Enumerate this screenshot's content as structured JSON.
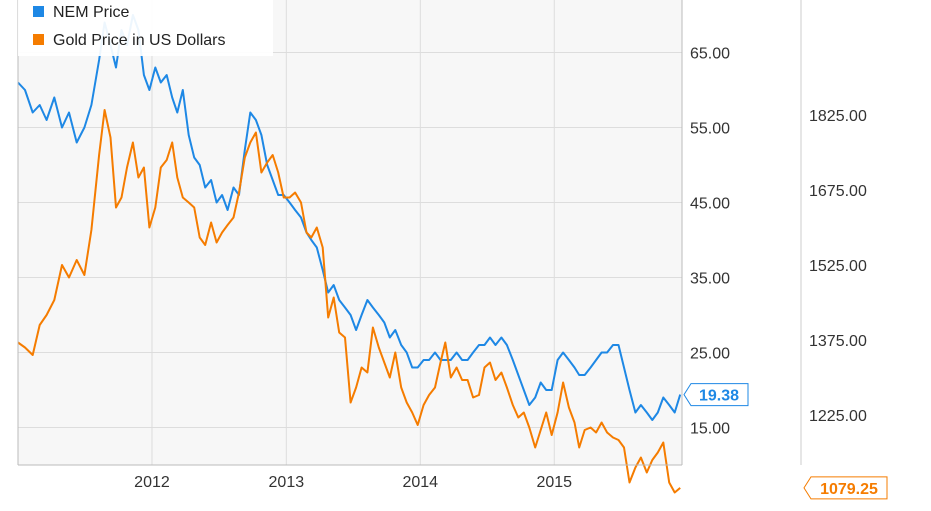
{
  "chart_data": {
    "type": "line",
    "title": "",
    "grid": true,
    "legend_position": "top-left",
    "x_ticks": [
      {
        "label": "2012",
        "date": "2012-01-01"
      },
      {
        "label": "2013",
        "date": "2013-01-01"
      },
      {
        "label": "2014",
        "date": "2014-01-01"
      },
      {
        "label": "2015",
        "date": "2015-01-01"
      }
    ],
    "x_range": [
      "2011-01-01",
      "2015-12-15"
    ],
    "axes": {
      "left": {
        "range": [
          10,
          72
        ],
        "ticks": [
          "15.00",
          "25.00",
          "35.00",
          "45.00",
          "55.00",
          "65.00"
        ]
      },
      "right": {
        "range": [
          1125,
          2055
        ],
        "ticks": [
          "1225.00",
          "1375.00",
          "1525.00",
          "1675.00",
          "1825.00"
        ]
      }
    },
    "series": [
      {
        "name": "NEM Price",
        "axis": "left",
        "color": "#1e88e5",
        "last_value_label": "19.38",
        "points": [
          [
            "2011-01-01",
            61
          ],
          [
            "2011-01-20",
            60
          ],
          [
            "2011-02-10",
            57
          ],
          [
            "2011-03-01",
            58
          ],
          [
            "2011-03-20",
            56
          ],
          [
            "2011-04-10",
            59
          ],
          [
            "2011-05-01",
            55
          ],
          [
            "2011-05-20",
            57
          ],
          [
            "2011-06-10",
            53
          ],
          [
            "2011-07-01",
            55
          ],
          [
            "2011-07-20",
            58
          ],
          [
            "2011-08-10",
            64
          ],
          [
            "2011-08-25",
            69
          ],
          [
            "2011-09-10",
            66
          ],
          [
            "2011-09-25",
            63
          ],
          [
            "2011-10-10",
            68
          ],
          [
            "2011-10-25",
            66
          ],
          [
            "2011-11-10",
            70
          ],
          [
            "2011-11-25",
            68
          ],
          [
            "2011-12-10",
            62
          ],
          [
            "2011-12-25",
            60
          ],
          [
            "2012-01-10",
            63
          ],
          [
            "2012-01-25",
            61
          ],
          [
            "2012-02-10",
            62
          ],
          [
            "2012-02-25",
            59
          ],
          [
            "2012-03-10",
            57
          ],
          [
            "2012-03-25",
            60
          ],
          [
            "2012-04-10",
            54
          ],
          [
            "2012-04-25",
            51
          ],
          [
            "2012-05-10",
            50
          ],
          [
            "2012-05-25",
            47
          ],
          [
            "2012-06-10",
            48
          ],
          [
            "2012-06-25",
            45
          ],
          [
            "2012-07-10",
            46
          ],
          [
            "2012-07-25",
            44
          ],
          [
            "2012-08-10",
            47
          ],
          [
            "2012-08-25",
            46
          ],
          [
            "2012-09-10",
            52
          ],
          [
            "2012-09-25",
            57
          ],
          [
            "2012-10-10",
            56
          ],
          [
            "2012-10-25",
            54
          ],
          [
            "2012-11-10",
            50
          ],
          [
            "2012-11-25",
            48
          ],
          [
            "2012-12-10",
            46
          ],
          [
            "2012-12-25",
            46
          ],
          [
            "2013-01-10",
            45
          ],
          [
            "2013-01-25",
            44
          ],
          [
            "2013-02-10",
            43
          ],
          [
            "2013-02-25",
            41
          ],
          [
            "2013-03-10",
            40
          ],
          [
            "2013-03-25",
            39
          ],
          [
            "2013-04-10",
            36
          ],
          [
            "2013-04-25",
            33
          ],
          [
            "2013-05-10",
            34
          ],
          [
            "2013-05-25",
            32
          ],
          [
            "2013-06-10",
            31
          ],
          [
            "2013-06-25",
            30
          ],
          [
            "2013-07-10",
            28
          ],
          [
            "2013-07-25",
            30
          ],
          [
            "2013-08-10",
            32
          ],
          [
            "2013-08-25",
            31
          ],
          [
            "2013-09-10",
            30
          ],
          [
            "2013-09-25",
            29
          ],
          [
            "2013-10-10",
            27
          ],
          [
            "2013-10-25",
            28
          ],
          [
            "2013-11-10",
            26
          ],
          [
            "2013-11-25",
            25
          ],
          [
            "2013-12-10",
            23
          ],
          [
            "2013-12-25",
            23
          ],
          [
            "2014-01-10",
            24
          ],
          [
            "2014-01-25",
            24
          ],
          [
            "2014-02-10",
            25
          ],
          [
            "2014-02-25",
            24
          ],
          [
            "2014-03-10",
            24
          ],
          [
            "2014-03-25",
            24
          ],
          [
            "2014-04-10",
            25
          ],
          [
            "2014-04-25",
            24
          ],
          [
            "2014-05-10",
            24
          ],
          [
            "2014-05-25",
            25
          ],
          [
            "2014-06-10",
            26
          ],
          [
            "2014-06-25",
            26
          ],
          [
            "2014-07-10",
            27
          ],
          [
            "2014-07-25",
            26
          ],
          [
            "2014-08-10",
            27
          ],
          [
            "2014-08-25",
            26
          ],
          [
            "2014-09-10",
            24
          ],
          [
            "2014-09-25",
            22
          ],
          [
            "2014-10-10",
            20
          ],
          [
            "2014-10-25",
            18
          ],
          [
            "2014-11-10",
            19
          ],
          [
            "2014-11-25",
            21
          ],
          [
            "2014-12-10",
            20
          ],
          [
            "2014-12-25",
            20
          ],
          [
            "2015-01-10",
            24
          ],
          [
            "2015-01-25",
            25
          ],
          [
            "2015-02-10",
            24
          ],
          [
            "2015-02-25",
            23
          ],
          [
            "2015-03-10",
            22
          ],
          [
            "2015-03-25",
            22
          ],
          [
            "2015-04-10",
            23
          ],
          [
            "2015-04-25",
            24
          ],
          [
            "2015-05-10",
            25
          ],
          [
            "2015-05-25",
            25
          ],
          [
            "2015-06-10",
            26
          ],
          [
            "2015-06-25",
            26
          ],
          [
            "2015-07-10",
            23
          ],
          [
            "2015-07-25",
            20
          ],
          [
            "2015-08-10",
            17
          ],
          [
            "2015-08-25",
            18
          ],
          [
            "2015-09-10",
            17
          ],
          [
            "2015-09-25",
            16
          ],
          [
            "2015-10-10",
            17
          ],
          [
            "2015-10-25",
            19
          ],
          [
            "2015-11-10",
            18
          ],
          [
            "2015-11-25",
            17
          ],
          [
            "2015-12-10",
            19.38
          ]
        ]
      },
      {
        "name": "Gold Price in US Dollars",
        "axis": "right",
        "color": "#f57c00",
        "last_value_label": "1079.25",
        "points": [
          [
            "2011-01-01",
            1370
          ],
          [
            "2011-01-20",
            1360
          ],
          [
            "2011-02-10",
            1345
          ],
          [
            "2011-03-01",
            1405
          ],
          [
            "2011-03-20",
            1425
          ],
          [
            "2011-04-10",
            1455
          ],
          [
            "2011-05-01",
            1525
          ],
          [
            "2011-05-20",
            1500
          ],
          [
            "2011-06-10",
            1535
          ],
          [
            "2011-07-01",
            1505
          ],
          [
            "2011-07-20",
            1595
          ],
          [
            "2011-08-10",
            1745
          ],
          [
            "2011-08-25",
            1835
          ],
          [
            "2011-09-10",
            1780
          ],
          [
            "2011-09-25",
            1640
          ],
          [
            "2011-10-10",
            1660
          ],
          [
            "2011-10-25",
            1720
          ],
          [
            "2011-11-10",
            1770
          ],
          [
            "2011-11-25",
            1700
          ],
          [
            "2011-12-10",
            1720
          ],
          [
            "2011-12-25",
            1600
          ],
          [
            "2012-01-10",
            1640
          ],
          [
            "2012-01-25",
            1720
          ],
          [
            "2012-02-10",
            1735
          ],
          [
            "2012-02-25",
            1770
          ],
          [
            "2012-03-10",
            1700
          ],
          [
            "2012-03-25",
            1660
          ],
          [
            "2012-04-10",
            1650
          ],
          [
            "2012-04-25",
            1640
          ],
          [
            "2012-05-10",
            1580
          ],
          [
            "2012-05-25",
            1565
          ],
          [
            "2012-06-10",
            1610
          ],
          [
            "2012-06-25",
            1570
          ],
          [
            "2012-07-10",
            1590
          ],
          [
            "2012-07-25",
            1605
          ],
          [
            "2012-08-10",
            1620
          ],
          [
            "2012-08-25",
            1670
          ],
          [
            "2012-09-10",
            1740
          ],
          [
            "2012-09-25",
            1770
          ],
          [
            "2012-10-10",
            1790
          ],
          [
            "2012-10-25",
            1710
          ],
          [
            "2012-11-10",
            1730
          ],
          [
            "2012-11-25",
            1745
          ],
          [
            "2012-12-10",
            1710
          ],
          [
            "2012-12-25",
            1660
          ],
          [
            "2013-01-10",
            1660
          ],
          [
            "2013-01-25",
            1670
          ],
          [
            "2013-02-10",
            1650
          ],
          [
            "2013-02-25",
            1590
          ],
          [
            "2013-03-10",
            1580
          ],
          [
            "2013-03-25",
            1600
          ],
          [
            "2013-04-10",
            1560
          ],
          [
            "2013-04-25",
            1420
          ],
          [
            "2013-05-10",
            1460
          ],
          [
            "2013-05-25",
            1390
          ],
          [
            "2013-06-10",
            1380
          ],
          [
            "2013-06-25",
            1250
          ],
          [
            "2013-07-10",
            1280
          ],
          [
            "2013-07-25",
            1320
          ],
          [
            "2013-08-10",
            1310
          ],
          [
            "2013-08-25",
            1400
          ],
          [
            "2013-09-10",
            1360
          ],
          [
            "2013-09-25",
            1330
          ],
          [
            "2013-10-10",
            1300
          ],
          [
            "2013-10-25",
            1350
          ],
          [
            "2013-11-10",
            1280
          ],
          [
            "2013-11-25",
            1250
          ],
          [
            "2013-12-10",
            1230
          ],
          [
            "2013-12-25",
            1205
          ],
          [
            "2014-01-10",
            1245
          ],
          [
            "2014-01-25",
            1265
          ],
          [
            "2014-02-10",
            1280
          ],
          [
            "2014-02-25",
            1330
          ],
          [
            "2014-03-10",
            1370
          ],
          [
            "2014-03-25",
            1300
          ],
          [
            "2014-04-10",
            1320
          ],
          [
            "2014-04-25",
            1295
          ],
          [
            "2014-05-10",
            1295
          ],
          [
            "2014-05-25",
            1260
          ],
          [
            "2014-06-10",
            1265
          ],
          [
            "2014-06-25",
            1320
          ],
          [
            "2014-07-10",
            1330
          ],
          [
            "2014-07-25",
            1295
          ],
          [
            "2014-08-10",
            1310
          ],
          [
            "2014-08-25",
            1280
          ],
          [
            "2014-09-10",
            1245
          ],
          [
            "2014-09-25",
            1220
          ],
          [
            "2014-10-10",
            1230
          ],
          [
            "2014-10-25",
            1200
          ],
          [
            "2014-11-10",
            1160
          ],
          [
            "2014-11-25",
            1195
          ],
          [
            "2014-12-10",
            1230
          ],
          [
            "2014-12-25",
            1185
          ],
          [
            "2015-01-10",
            1230
          ],
          [
            "2015-01-25",
            1290
          ],
          [
            "2015-02-10",
            1240
          ],
          [
            "2015-02-25",
            1210
          ],
          [
            "2015-03-10",
            1160
          ],
          [
            "2015-03-25",
            1195
          ],
          [
            "2015-04-10",
            1200
          ],
          [
            "2015-04-25",
            1190
          ],
          [
            "2015-05-10",
            1210
          ],
          [
            "2015-05-25",
            1190
          ],
          [
            "2015-06-10",
            1180
          ],
          [
            "2015-06-25",
            1175
          ],
          [
            "2015-07-10",
            1160
          ],
          [
            "2015-07-25",
            1090
          ],
          [
            "2015-08-10",
            1120
          ],
          [
            "2015-08-25",
            1140
          ],
          [
            "2015-09-10",
            1110
          ],
          [
            "2015-09-25",
            1135
          ],
          [
            "2015-10-10",
            1150
          ],
          [
            "2015-10-25",
            1170
          ],
          [
            "2015-11-10",
            1090
          ],
          [
            "2015-11-25",
            1070
          ],
          [
            "2015-12-10",
            1079.25
          ]
        ]
      }
    ]
  }
}
